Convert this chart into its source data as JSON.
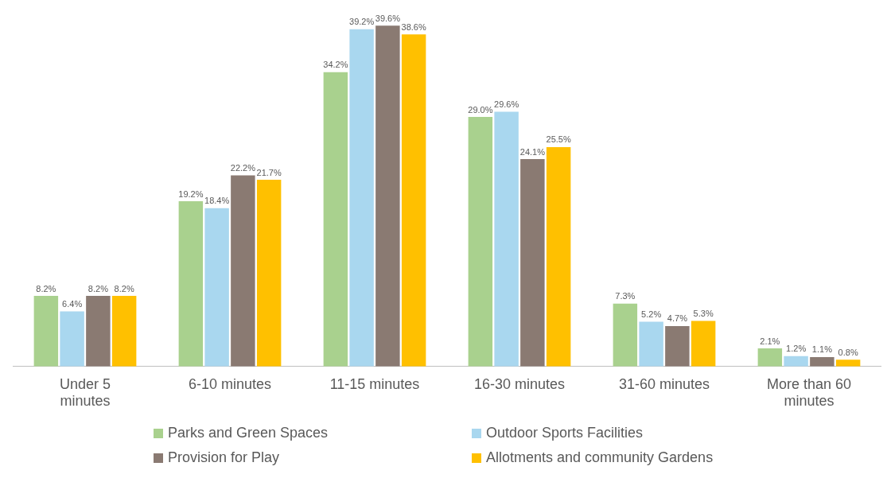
{
  "chart_data": {
    "type": "bar",
    "categories": [
      "Under 5 minutes",
      "6-10 minutes",
      "11-15 minutes",
      "16-30 minutes",
      "31-60 minutes",
      "More than 60 minutes"
    ],
    "series": [
      {
        "name": "Parks and Green Spaces",
        "color": "#a9d18e",
        "values": [
          8.2,
          19.2,
          34.2,
          29.0,
          7.3,
          2.1
        ],
        "value_labels": [
          "8.2%",
          "19.2%",
          "34.2%",
          "29.0%",
          "7.3%",
          "2.1%"
        ]
      },
      {
        "name": "Outdoor Sports Facilities",
        "color": "#a9d7ef",
        "values": [
          6.4,
          18.4,
          39.2,
          29.6,
          5.2,
          1.2
        ],
        "value_labels": [
          "6.4%",
          "18.4%",
          "39.2%",
          "29.6%",
          "5.2%",
          "1.2%"
        ]
      },
      {
        "name": "Provision for Play",
        "color": "#8a7a72",
        "values": [
          8.2,
          22.2,
          39.6,
          24.1,
          4.7,
          1.1
        ],
        "value_labels": [
          "8.2%",
          "22.2%",
          "39.6%",
          "24.1%",
          "4.7%",
          "1.1%"
        ]
      },
      {
        "name": "Allotments and community Gardens",
        "color": "#ffc000",
        "values": [
          8.2,
          21.7,
          38.6,
          25.5,
          5.3,
          0.8
        ],
        "value_labels": [
          "8.2%",
          "21.7%",
          "38.6%",
          "25.5%",
          "5.3%",
          "0.8%"
        ]
      }
    ],
    "grid": false,
    "legend": "bottom"
  }
}
